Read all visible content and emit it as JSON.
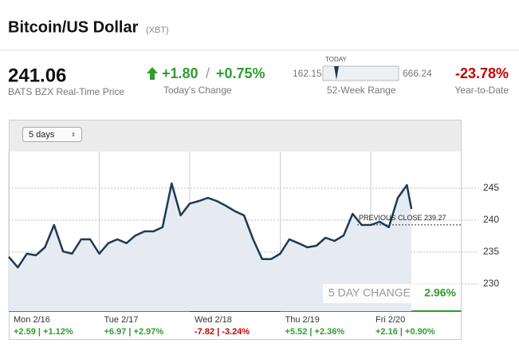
{
  "header": {
    "title": "Bitcoin/US Dollar",
    "symbol": "(XBT)"
  },
  "quote": {
    "price": "241.06",
    "price_caption": "BATS BZX Real-Time Price",
    "change": "+1.80",
    "separator": "/",
    "change_pct": "+0.75%",
    "change_caption": "Today's Change",
    "range_low": "162.15",
    "range_high": "666.24",
    "range_marker": "TODAY",
    "range_caption": "52-Week Range",
    "ytd": "-23.78%",
    "ytd_caption": "Year-to-Date"
  },
  "controls": {
    "period": "5 days"
  },
  "chart_data": {
    "type": "line",
    "x": [
      0,
      0.1,
      0.2,
      0.3,
      0.4,
      0.5,
      0.6,
      0.7,
      0.8,
      0.9,
      1,
      1.1,
      1.2,
      1.3,
      1.4,
      1.5,
      1.6,
      1.7,
      1.8,
      1.9,
      2,
      2.1,
      2.2,
      2.3,
      2.4,
      2.5,
      2.6,
      2.7,
      2.8,
      2.9,
      3,
      3.1,
      3.2,
      3.3,
      3.4,
      3.5,
      3.6,
      3.7,
      3.8,
      3.9,
      4,
      4.1,
      4.2,
      4.3,
      4.4,
      4.45
    ],
    "series": [
      {
        "color": "#1d3a54",
        "values": [
          234.25,
          232.6,
          234.75,
          234.5,
          235.75,
          239.25,
          235.1,
          234.75,
          237,
          237,
          234.75,
          236.4,
          237,
          236.4,
          237.6,
          238.25,
          238.25,
          238.9,
          245.75,
          240.75,
          242.6,
          243,
          243.5,
          243,
          242.25,
          241.4,
          240.75,
          237,
          233.9,
          233.9,
          234.75,
          237,
          236.4,
          235.75,
          236,
          237.25,
          236.75,
          237.6,
          241,
          239.25,
          239.25,
          239.75,
          238.9,
          243.5,
          245.5,
          241.75
        ]
      }
    ],
    "xlim": [
      0,
      5
    ],
    "ylim": [
      225.75,
      250.75
    ],
    "yticks": [
      230,
      235,
      240,
      245
    ],
    "grid": true,
    "previous_close": {
      "value": 239.27,
      "label": "PREVIOUS CLOSE 239.27"
    },
    "five_day_label": "5 DAY CHANGE",
    "five_day_value": "2.96%",
    "days": [
      {
        "label": "Mon 2/16",
        "change": "+2.59 | +1.12%",
        "color": "#2e9e2e"
      },
      {
        "label": "Tue 2/17",
        "change": "+6.97 | +2.97%",
        "color": "#2e9e2e"
      },
      {
        "label": "Wed 2/18",
        "change": "-7.82 | -3.24%",
        "color": "#c40000"
      },
      {
        "label": "Thu 2/19",
        "change": "+5.52 | +2.36%",
        "color": "#2e9e2e"
      },
      {
        "label": "Fri 2/20",
        "change": "+2.16 | +0.90%",
        "color": "#2e9e2e"
      }
    ]
  }
}
